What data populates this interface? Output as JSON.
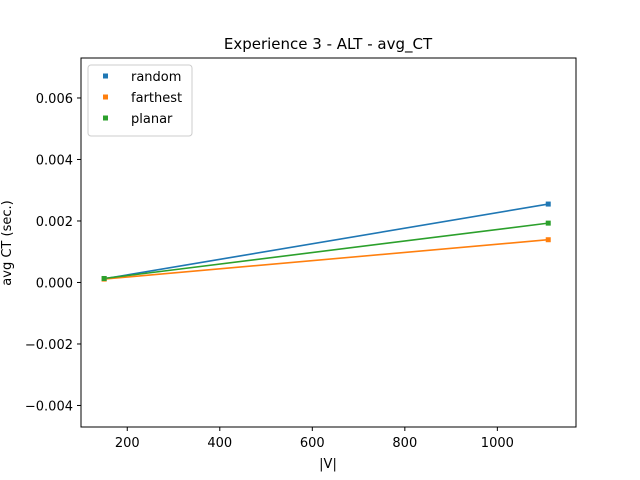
{
  "chart_data": {
    "type": "line",
    "title": "Experience 3 - ALT - avg_CT",
    "xlabel": "|V|",
    "ylabel": "avg CT (sec.)",
    "xlim": [
      100,
      1170
    ],
    "ylim": [
      -0.0047,
      0.0073
    ],
    "xticks": [
      200,
      400,
      600,
      800,
      1000
    ],
    "yticks": [
      -0.004,
      -0.002,
      0.0,
      0.002,
      0.004,
      0.006
    ],
    "ytick_labels": [
      "−0.004",
      "−0.002",
      "0.000",
      "0.002",
      "0.004",
      "0.006"
    ],
    "grid": false,
    "legend_position": "top-left",
    "series": [
      {
        "name": "random",
        "color": "#1f77b4",
        "x": [
          150,
          1110
        ],
        "y": [
          0.00012,
          0.00255
        ]
      },
      {
        "name": "farthest",
        "color": "#ff7f0e",
        "x": [
          150,
          1110
        ],
        "y": [
          0.00011,
          0.00139
        ]
      },
      {
        "name": "planar",
        "color": "#2ca02c",
        "x": [
          150,
          1110
        ],
        "y": [
          0.00013,
          0.00193
        ]
      }
    ]
  }
}
